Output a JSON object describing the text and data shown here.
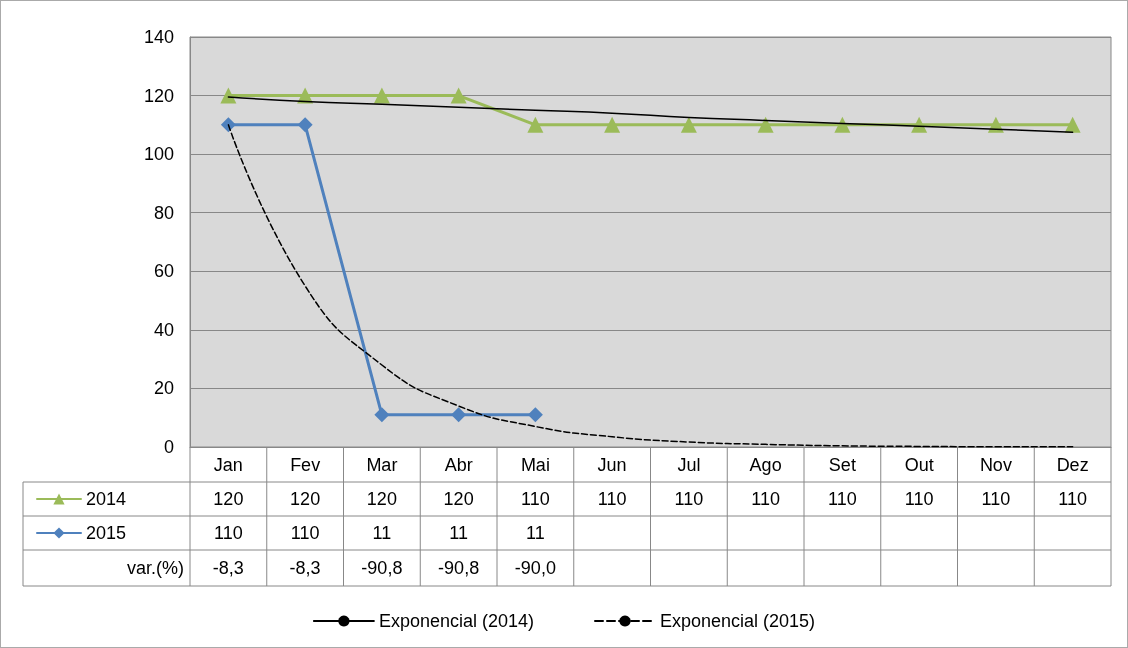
{
  "chart_data": {
    "type": "line",
    "categories": [
      "Jan",
      "Fev",
      "Mar",
      "Abr",
      "Mai",
      "Jun",
      "Jul",
      "Ago",
      "Set",
      "Out",
      "Nov",
      "Dez"
    ],
    "series": [
      {
        "name": "2014",
        "color": "#9bbb59",
        "marker": "triangle",
        "values": [
          120,
          120,
          120,
          120,
          110,
          110,
          110,
          110,
          110,
          110,
          110,
          110
        ],
        "value_labels": [
          "120",
          "120",
          "120",
          "120",
          "110",
          "110",
          "110",
          "110",
          "110",
          "110",
          "110",
          "110"
        ]
      },
      {
        "name": "2015",
        "color": "#4f81bd",
        "marker": "diamond",
        "values": [
          110,
          110,
          11,
          11,
          11,
          null,
          null,
          null,
          null,
          null,
          null,
          null
        ],
        "value_labels": [
          "110",
          "110",
          "11",
          "11",
          "11",
          null,
          null,
          null,
          null,
          null,
          null,
          null
        ]
      },
      {
        "name": "Exponencial (2014)",
        "color": "#000000",
        "marker": "none",
        "line_style": "solid",
        "values": [
          119.5,
          118,
          117,
          116,
          115,
          114,
          112.5,
          111.5,
          110.5,
          109.5,
          108.5,
          107.5
        ]
      },
      {
        "name": "Exponencial (2015)",
        "color": "#000000",
        "marker": "none",
        "line_style": "dashed",
        "values": [
          110,
          55,
          28,
          14,
          7,
          3.5,
          1.7,
          0.9,
          0.4,
          0.2,
          0.1,
          0.1
        ]
      }
    ],
    "annotations": [
      "var.(%)",
      "-8,3",
      "-8,3",
      "-90,8",
      "-90,8",
      "-90,0"
    ],
    "ylim": [
      0,
      140
    ],
    "yticks": [
      0,
      20,
      40,
      60,
      80,
      100,
      120,
      140
    ],
    "grid": "y",
    "legend": "bottom"
  }
}
